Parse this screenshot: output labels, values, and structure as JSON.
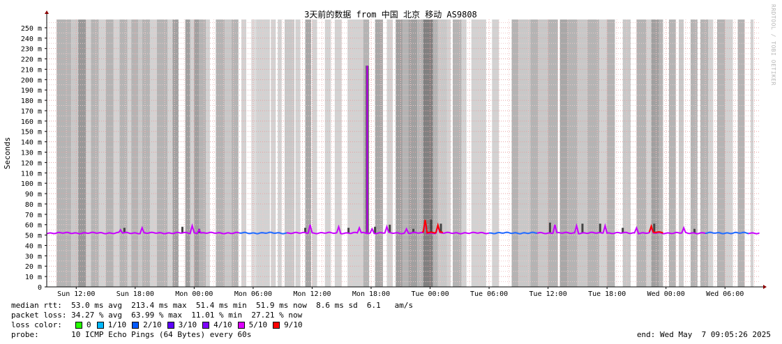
{
  "chart_data": {
    "type": "line",
    "title": "3天前的数据 from 中国 北京 移动 AS9808",
    "ylabel": "Seconds",
    "ylim": [
      0,
      0.258
    ],
    "xlim_hours": [
      -1,
      71.6
    ],
    "y_ticks": [
      "0",
      "10 m",
      "20 m",
      "30 m",
      "40 m",
      "50 m",
      "60 m",
      "70 m",
      "80 m",
      "90 m",
      "100 m",
      "110 m",
      "120 m",
      "130 m",
      "140 m",
      "150 m",
      "160 m",
      "170 m",
      "180 m",
      "190 m",
      "200 m",
      "210 m",
      "220 m",
      "230 m",
      "240 m",
      "250 m"
    ],
    "x_ticks": [
      {
        "label": "Sun 12:00",
        "h": 2
      },
      {
        "label": "Sun 18:00",
        "h": 8
      },
      {
        "label": "Mon 00:00",
        "h": 14
      },
      {
        "label": "Mon 06:00",
        "h": 20
      },
      {
        "label": "Mon 12:00",
        "h": 26
      },
      {
        "label": "Mon 18:00",
        "h": 32
      },
      {
        "label": "Tue 00:00",
        "h": 38
      },
      {
        "label": "Tue 06:00",
        "h": 44
      },
      {
        "label": "Tue 12:00",
        "h": 50
      },
      {
        "label": "Tue 18:00",
        "h": 56
      },
      {
        "label": "Wed 00:00",
        "h": 62
      },
      {
        "label": "Wed 06:00",
        "h": 68
      }
    ],
    "grid": true,
    "median_baseline": 0.052,
    "median_bumps": [
      [
        6.5,
        0.055
      ],
      [
        8.7,
        0.057
      ],
      [
        13.8,
        0.059
      ],
      [
        14.5,
        0.055
      ],
      [
        25.8,
        0.06
      ],
      [
        28.7,
        0.058
      ],
      [
        30.8,
        0.057
      ],
      [
        32.1,
        0.056
      ],
      [
        33.6,
        0.058
      ],
      [
        35.6,
        0.056
      ],
      [
        37.5,
        0.064
      ],
      [
        38.8,
        0.059
      ],
      [
        50.7,
        0.06
      ],
      [
        52.9,
        0.059
      ],
      [
        55.8,
        0.059
      ],
      [
        59.0,
        0.057
      ],
      [
        60.5,
        0.058
      ],
      [
        63.8,
        0.057
      ]
    ],
    "median_spike": [
      31.6,
      0.2134
    ],
    "loss_spans": [
      [
        37.2,
        39.4
      ],
      [
        60.3,
        61.8
      ]
    ],
    "smoke_spikes": [
      [
        6.9,
        0.057
      ],
      [
        12.8,
        0.058
      ],
      [
        14.5,
        0.056
      ],
      [
        25.3,
        0.057
      ],
      [
        29.7,
        0.057
      ],
      [
        32.4,
        0.058
      ],
      [
        33.9,
        0.06
      ],
      [
        36.3,
        0.056
      ],
      [
        38.1,
        0.065
      ],
      [
        39.1,
        0.061
      ],
      [
        50.2,
        0.062
      ],
      [
        53.5,
        0.061
      ],
      [
        55.3,
        0.061
      ],
      [
        57.6,
        0.057
      ],
      [
        60.8,
        0.061
      ],
      [
        64.9,
        0.056
      ]
    ],
    "loss_bands": [
      {
        "start": 0.0,
        "end": 1.5,
        "shade": "#b4b4b4"
      },
      {
        "start": 1.5,
        "end": 2.2,
        "shade": "#c8c8c8"
      },
      {
        "start": 2.2,
        "end": 3.0,
        "shade": "#999999"
      },
      {
        "start": 3.0,
        "end": 3.5,
        "shade": "#d2d2d2"
      },
      {
        "start": 3.5,
        "end": 4.3,
        "shade": "#b4b4b4"
      },
      {
        "start": 4.3,
        "end": 5.0,
        "shade": "#d2d2d2"
      },
      {
        "start": 5.0,
        "end": 5.8,
        "shade": "#b4b4b4"
      },
      {
        "start": 5.8,
        "end": 6.4,
        "shade": "#d2d2d2"
      },
      {
        "start": 6.4,
        "end": 7.2,
        "shade": "#b4b4b4"
      },
      {
        "start": 7.2,
        "end": 7.6,
        "shade": "#d2d2d2"
      },
      {
        "start": 7.6,
        "end": 8.3,
        "shade": "#b4b4b4"
      },
      {
        "start": 8.3,
        "end": 8.7,
        "shade": "#c8c8c8"
      },
      {
        "start": 8.7,
        "end": 9.5,
        "shade": "#b4b4b4"
      },
      {
        "start": 9.5,
        "end": 10.2,
        "shade": "#d2d2d2"
      },
      {
        "start": 10.2,
        "end": 11.3,
        "shade": "#b4b4b4"
      },
      {
        "start": 11.3,
        "end": 11.8,
        "shade": "#d2d2d2"
      },
      {
        "start": 11.8,
        "end": 12.4,
        "shade": "#a0a0a0"
      },
      {
        "start": 13.1,
        "end": 13.6,
        "shade": "#a0a0a0"
      },
      {
        "start": 13.6,
        "end": 14.0,
        "shade": "#d2d2d2"
      },
      {
        "start": 14.0,
        "end": 14.5,
        "shade": "#a0a0a0"
      },
      {
        "start": 14.5,
        "end": 15.2,
        "shade": "#b4b4b4"
      },
      {
        "start": 15.2,
        "end": 15.6,
        "shade": "#d2d2d2"
      },
      {
        "start": 16.2,
        "end": 17.1,
        "shade": "#b4b4b4"
      },
      {
        "start": 17.1,
        "end": 17.8,
        "shade": "#c8c8c8"
      },
      {
        "start": 17.8,
        "end": 18.5,
        "shade": "#b4b4b4"
      },
      {
        "start": 18.8,
        "end": 19.3,
        "shade": "#d2d2d2"
      },
      {
        "start": 19.8,
        "end": 20.3,
        "shade": "#dcdcdc"
      },
      {
        "start": 20.3,
        "end": 21.7,
        "shade": "#d2d2d2"
      },
      {
        "start": 21.8,
        "end": 22.3,
        "shade": "#d2d2d2"
      },
      {
        "start": 22.5,
        "end": 22.9,
        "shade": "#d2d2d2"
      },
      {
        "start": 23.2,
        "end": 24.2,
        "shade": "#c8c8c8"
      },
      {
        "start": 24.3,
        "end": 24.8,
        "shade": "#d2d2d2"
      },
      {
        "start": 25.3,
        "end": 25.9,
        "shade": "#a8a8a8"
      },
      {
        "start": 26.0,
        "end": 26.5,
        "shade": "#d2d2d2"
      },
      {
        "start": 27.3,
        "end": 27.9,
        "shade": "#d2d2d2"
      },
      {
        "start": 28.3,
        "end": 29.0,
        "shade": "#d2d2d2"
      },
      {
        "start": 29.6,
        "end": 31.2,
        "shade": "#d2d2d2"
      },
      {
        "start": 31.2,
        "end": 31.8,
        "shade": "#b4b4b4"
      },
      {
        "start": 32.4,
        "end": 33.2,
        "shade": "#a8a8a8"
      },
      {
        "start": 33.6,
        "end": 34.2,
        "shade": "#d2d2d2"
      },
      {
        "start": 34.5,
        "end": 35.2,
        "shade": "#a0a0a0"
      },
      {
        "start": 35.2,
        "end": 35.8,
        "shade": "#b4b4b4"
      },
      {
        "start": 35.8,
        "end": 36.7,
        "shade": "#a0a0a0"
      },
      {
        "start": 36.7,
        "end": 37.3,
        "shade": "#b4b4b4"
      },
      {
        "start": 37.3,
        "end": 38.3,
        "shade": "#808080"
      },
      {
        "start": 38.3,
        "end": 38.8,
        "shade": "#b4b4b4"
      },
      {
        "start": 38.8,
        "end": 39.7,
        "shade": "#c8c8c8"
      },
      {
        "start": 39.7,
        "end": 40.1,
        "shade": "#d2d2d2"
      },
      {
        "start": 40.3,
        "end": 41.2,
        "shade": "#b4b4b4"
      },
      {
        "start": 41.2,
        "end": 41.7,
        "shade": "#d2d2d2"
      },
      {
        "start": 42.2,
        "end": 43.7,
        "shade": "#d2d2d2"
      },
      {
        "start": 44.3,
        "end": 45.0,
        "shade": "#d2d2d2"
      },
      {
        "start": 46.3,
        "end": 47.0,
        "shade": "#b4b4b4"
      },
      {
        "start": 47.0,
        "end": 48.2,
        "shade": "#c8c8c8"
      },
      {
        "start": 48.2,
        "end": 49.0,
        "shade": "#b4b4b4"
      },
      {
        "start": 49.0,
        "end": 50.0,
        "shade": "#c8c8c8"
      },
      {
        "start": 50.0,
        "end": 51.0,
        "shade": "#b4b4b4"
      },
      {
        "start": 51.2,
        "end": 52.0,
        "shade": "#a8a8a8"
      },
      {
        "start": 52.0,
        "end": 53.0,
        "shade": "#b4b4b4"
      },
      {
        "start": 53.0,
        "end": 54.0,
        "shade": "#c8c8c8"
      },
      {
        "start": 54.0,
        "end": 55.2,
        "shade": "#b4b4b4"
      },
      {
        "start": 55.2,
        "end": 56.0,
        "shade": "#d2d2d2"
      },
      {
        "start": 56.0,
        "end": 56.8,
        "shade": "#b4b4b4"
      },
      {
        "start": 57.6,
        "end": 58.4,
        "shade": "#c8c8c8"
      },
      {
        "start": 59.0,
        "end": 60.0,
        "shade": "#b4b4b4"
      },
      {
        "start": 60.0,
        "end": 60.5,
        "shade": "#d2d2d2"
      },
      {
        "start": 60.5,
        "end": 61.3,
        "shade": "#a0a0a0"
      },
      {
        "start": 61.3,
        "end": 61.7,
        "shade": "#b4b4b4"
      },
      {
        "start": 62.3,
        "end": 63.0,
        "shade": "#b4b4b4"
      },
      {
        "start": 63.3,
        "end": 63.8,
        "shade": "#c8c8c8"
      },
      {
        "start": 64.5,
        "end": 65.2,
        "shade": "#b4b4b4"
      },
      {
        "start": 65.5,
        "end": 66.3,
        "shade": "#b4b4b4"
      },
      {
        "start": 66.3,
        "end": 66.8,
        "shade": "#d2d2d2"
      },
      {
        "start": 67.2,
        "end": 68.0,
        "shade": "#b4b4b4"
      },
      {
        "start": 68.0,
        "end": 68.8,
        "shade": "#d2d2d2"
      },
      {
        "start": 69.3,
        "end": 70.0,
        "shade": "#b4b4b4"
      },
      {
        "start": 70.6,
        "end": 70.9,
        "shade": "#d2d2d2"
      }
    ],
    "line_colors": {
      "low_loss": "#c900ff",
      "no_loss": "#1f77ff",
      "high_loss": "#ff0000"
    }
  },
  "stats": {
    "median_rtt": "median rtt:  53.0 ms avg  213.4 ms max  51.4 ms min  51.9 ms now  8.6 ms sd  6.1   am/s",
    "packet_loss": "packet loss: 34.27 % avg  63.99 % max  11.01 % min  27.21 % now",
    "loss_color_label": "loss color:",
    "probe": "probe:       10 ICMP Echo Pings (64 Bytes) every 60s",
    "end": "end: Wed May  7 09:05:26 2025"
  },
  "legend": [
    {
      "label": "0",
      "color": "#26ff00"
    },
    {
      "label": "1/10",
      "color": "#00b8ff"
    },
    {
      "label": "2/10",
      "color": "#0059ff"
    },
    {
      "label": "3/10",
      "color": "#5e00ff"
    },
    {
      "label": "4/10",
      "color": "#7e00ff"
    },
    {
      "label": "5/10",
      "color": "#dd00ff"
    },
    {
      "label": "9/10",
      "color": "#ff0000"
    }
  ],
  "watermark": "RRDTOOL / TOBI OETIKER"
}
